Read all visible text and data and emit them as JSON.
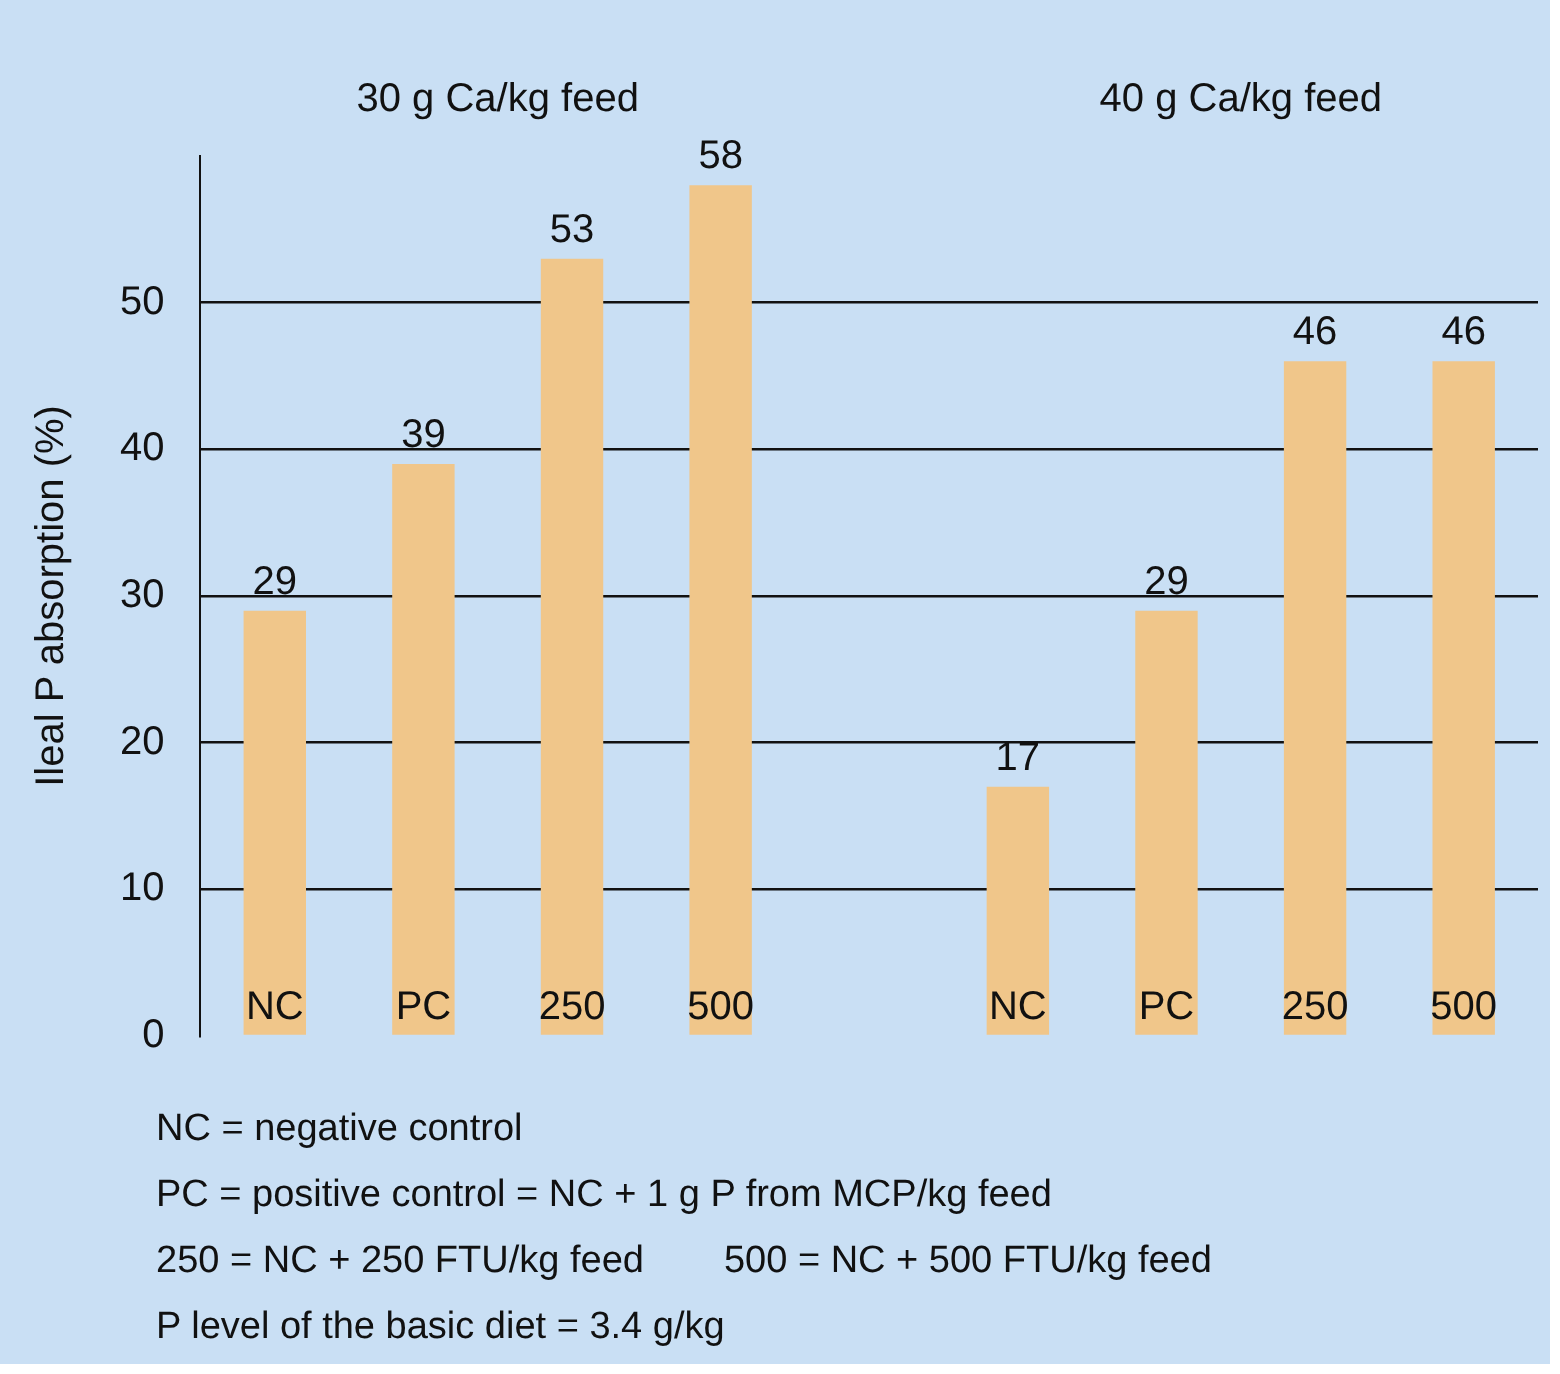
{
  "chart_data": {
    "type": "bar",
    "ylabel": "Ileal P absorption (%)",
    "categories": [
      "NC",
      "PC",
      "250",
      "500",
      null,
      "NC",
      "PC",
      "250",
      "500"
    ],
    "values": [
      29,
      39,
      53,
      58,
      null,
      17,
      29,
      46,
      46
    ],
    "color": "#f0c68a",
    "ylim": [
      0,
      60
    ],
    "yticks": [
      0,
      10,
      20,
      30,
      40,
      50
    ],
    "grid": "y",
    "data_labels": true,
    "legend": false,
    "annotations": [
      "30 g Ca/kg feed",
      "40 g Ca/kg feed",
      "NC = negative control",
      "PC = positive control = NC + 1 g P from MCP/kg feed",
      "250 = NC + 250 FTU/kg feed",
      "500 = NC + 500 FTU/kg feed",
      "P level of the basic diet = 3.4 g/kg"
    ]
  }
}
